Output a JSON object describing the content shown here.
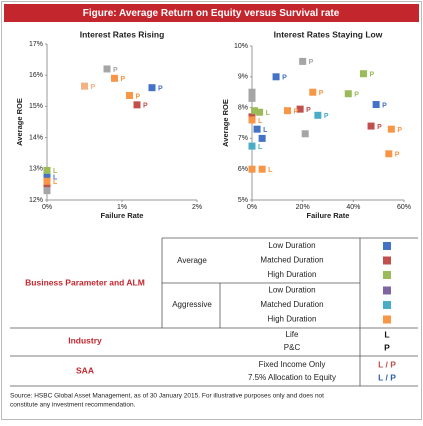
{
  "title": "Figure: Average Return on Equity versus Survival rate",
  "chart_data": [
    {
      "type": "scatter",
      "title": "Interest Rates Rising",
      "xlabel": "Failure Rate",
      "ylabel": "Average ROE",
      "xlim": [
        0,
        2
      ],
      "ylim": [
        12,
        17
      ],
      "xticks": [
        {
          "value": 0,
          "label": "0%"
        },
        {
          "value": 1,
          "label": "1%"
        },
        {
          "value": 2,
          "label": "2%"
        }
      ],
      "yticks": [
        {
          "value": 12,
          "label": "12%"
        },
        {
          "value": 13,
          "label": "13%"
        },
        {
          "value": 14,
          "label": "14%"
        },
        {
          "value": 15,
          "label": "15%"
        },
        {
          "value": 16,
          "label": "16%"
        },
        {
          "value": 17,
          "label": "17%"
        }
      ],
      "series": [
        {
          "color": "#4472c4",
          "x": [
            1.4,
            0
          ],
          "values": [
            15.6,
            12.75
          ],
          "point_labels": [
            "P",
            "L"
          ]
        },
        {
          "color": "#c0504d",
          "x": [
            1.2,
            0
          ],
          "values": [
            15.05,
            12.45
          ],
          "point_labels": [
            "P",
            null
          ]
        },
        {
          "color": "#9bbb59",
          "x": [
            0
          ],
          "values": [
            12.95
          ],
          "point_labels": [
            "L"
          ]
        },
        {
          "color": "#a5a5a5",
          "x": [
            0.8,
            0
          ],
          "values": [
            16.2,
            12.3
          ],
          "point_labels": [
            "P",
            null
          ]
        },
        {
          "color": "#f79646",
          "x": [
            0.9,
            1.1,
            0
          ],
          "values": [
            15.9,
            15.35,
            12.6
          ],
          "point_labels": [
            "P",
            "P",
            "L"
          ]
        },
        {
          "color": "#f4b183",
          "x": [
            0.5
          ],
          "values": [
            15.65
          ],
          "point_labels": [
            "P"
          ]
        }
      ]
    },
    {
      "type": "scatter",
      "title": "Interest Rates Staying Low",
      "xlabel": "Failure Rate",
      "ylabel": "Average ROE",
      "xlim": [
        0,
        60
      ],
      "ylim": [
        5,
        10
      ],
      "xticks": [
        {
          "value": 0,
          "label": "0%"
        },
        {
          "value": 20,
          "label": "20%"
        },
        {
          "value": 40,
          "label": "40%"
        },
        {
          "value": 60,
          "label": "60%"
        }
      ],
      "yticks": [
        {
          "value": 5,
          "label": "5%"
        },
        {
          "value": 6,
          "label": "6%"
        },
        {
          "value": 7,
          "label": "7%"
        },
        {
          "value": 8,
          "label": "8%"
        },
        {
          "value": 9,
          "label": "9%"
        },
        {
          "value": 10,
          "label": "10%"
        }
      ],
      "series": [
        {
          "color": "#4472c4",
          "x": [
            9.5,
            49,
            2,
            4
          ],
          "values": [
            9.0,
            8.1,
            7.3,
            7.0
          ],
          "point_labels": [
            "P",
            "P",
            "L",
            null
          ]
        },
        {
          "color": "#c0504d",
          "x": [
            19,
            47,
            0
          ],
          "values": [
            7.95,
            7.4,
            7.7
          ],
          "point_labels": [
            "P",
            "P",
            null
          ]
        },
        {
          "color": "#9bbb59",
          "x": [
            44,
            38,
            3,
            1
          ],
          "values": [
            9.1,
            8.45,
            7.85,
            7.9
          ],
          "point_labels": [
            "P",
            "P",
            "L",
            null
          ]
        },
        {
          "color": "#a5a5a5",
          "x": [
            20,
            21,
            0,
            0
          ],
          "values": [
            9.5,
            7.15,
            8.5,
            8.3
          ],
          "point_labels": [
            "P",
            null,
            null,
            null
          ]
        },
        {
          "color": "#4bacc6",
          "x": [
            26,
            0
          ],
          "values": [
            7.75,
            6.75
          ],
          "point_labels": [
            "P",
            "L"
          ]
        },
        {
          "color": "#f79646",
          "x": [
            24,
            14,
            55,
            54,
            0,
            4,
            0
          ],
          "values": [
            8.5,
            7.9,
            7.3,
            6.5,
            7.6,
            6.0,
            6.0
          ],
          "point_labels": [
            "P",
            "P",
            "P",
            "P",
            "L",
            "L",
            null
          ]
        }
      ]
    }
  ],
  "legend_table": {
    "groups": [
      {
        "label": "Business Parameter and ALM",
        "subgroups": [
          {
            "label": "Average",
            "rows": [
              {
                "label": "Low Duration",
                "color": "#4472c4"
              },
              {
                "label": "Matched Duration",
                "color": "#c0504d"
              },
              {
                "label": "High Duration",
                "color": "#9bbb59"
              }
            ]
          },
          {
            "label": "Aggressive",
            "rows": [
              {
                "label": "Low Duration",
                "color": "#8064a2"
              },
              {
                "label": "Matched Duration",
                "color": "#4bacc6"
              },
              {
                "label": "High Duration",
                "color": "#f79646"
              }
            ]
          }
        ]
      },
      {
        "label": "Industry",
        "rows": [
          {
            "label": "Life",
            "key": "L"
          },
          {
            "label": "P&C",
            "key": "P"
          }
        ]
      },
      {
        "label": "SAA",
        "rows": [
          {
            "label": "Fixed Income Only",
            "key": "L / P",
            "key_color": "#c0504d"
          },
          {
            "label": "7.5% Allocation to Equity",
            "key": "L / P",
            "key_color": "#2e5fa8"
          }
        ]
      }
    ]
  },
  "source": [
    "Source: HSBC Global Asset Management, as of 30 January 2015. For illustrative purposes only and does not",
    "constitute any investment recommendation."
  ]
}
